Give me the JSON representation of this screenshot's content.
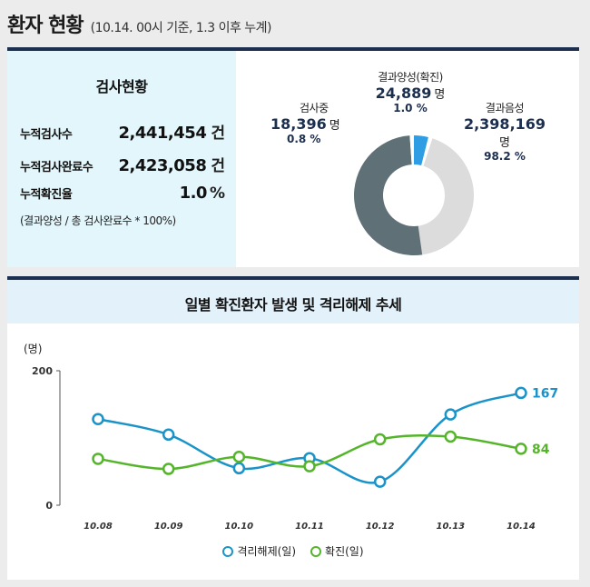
{
  "header": {
    "title": "환자 현황",
    "subtitle": "(10.14. 00시 기준, 1.3 이후 누계)"
  },
  "stats": {
    "title": "검사현황",
    "rows": [
      {
        "label": "누적검사수",
        "value": "2,441,454",
        "unit": "건"
      },
      {
        "label": "누적검사완료수",
        "value": "2,423,058",
        "unit": "건"
      },
      {
        "label": "누적확진율",
        "value": "1.0",
        "unit": "%"
      }
    ],
    "note": "(결과양성 / 총 검사완료수 * 100%)"
  },
  "donut": {
    "positive": {
      "label": "결과양성(확진)",
      "value": "24,889",
      "unit": "명",
      "pct": "1.0 %",
      "share": 1.0,
      "color": "#2f9de3"
    },
    "testing": {
      "label": "검사중",
      "value": "18,396",
      "unit": "명",
      "pct": "0.8 %",
      "share": 0.8,
      "color": "#e8e8e8"
    },
    "negative": {
      "label": "결과음성",
      "value": "2,398,169",
      "unit": "명",
      "pct": "98.2 %",
      "share": 98.2,
      "colors": [
        "#dcdcdc",
        "#5f7077"
      ]
    }
  },
  "chart_data": {
    "type": "line",
    "title": "일별 확진환자 발생 및 격리해제 추세",
    "ylabel": "(명)",
    "ylim": [
      0,
      200
    ],
    "yticks": [
      "200",
      "0"
    ],
    "categories": [
      "10.08",
      "10.09",
      "10.10",
      "10.11",
      "10.12",
      "10.13",
      "10.14"
    ],
    "series": [
      {
        "name": "격리해제(일)",
        "color": "#1a93c9",
        "values": [
          128,
          105,
          55,
          70,
          35,
          135,
          167
        ]
      },
      {
        "name": "확진(일)",
        "color": "#54b52a",
        "values": [
          69,
          54,
          72,
          58,
          98,
          102,
          84
        ]
      }
    ],
    "end_labels": [
      "167",
      "84"
    ]
  }
}
